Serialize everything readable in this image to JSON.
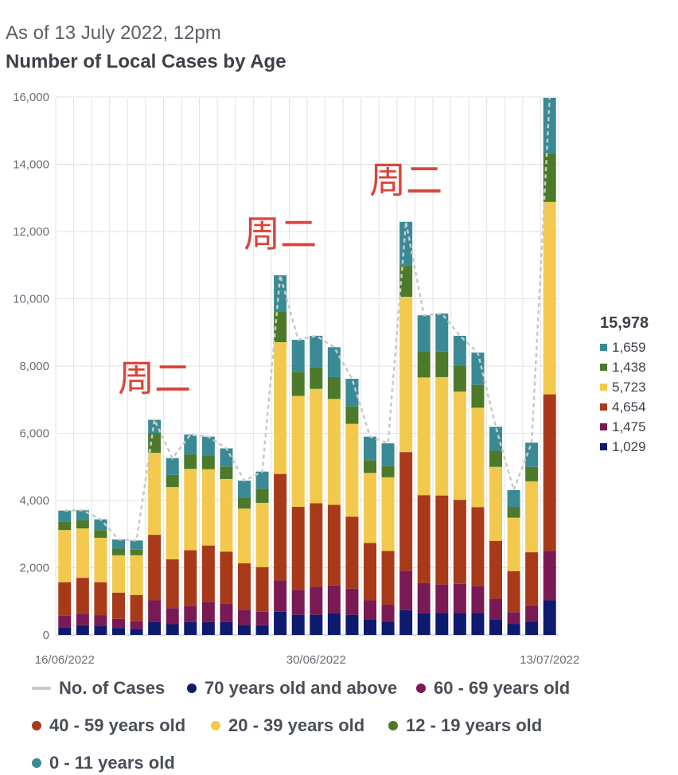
{
  "header": {
    "subtitle": "As of 13 July 2022, 12pm",
    "title": "Number of Local Cases by Age"
  },
  "chart_data": {
    "type": "bar",
    "stacked": true,
    "title": "Number of Local Cases by Age",
    "subtitle": "As of 13 July 2022, 12pm",
    "ylim": [
      0,
      16000
    ],
    "yticks": [
      "0",
      "2,000",
      "4,000",
      "6,000",
      "8,000",
      "10,000",
      "12,000",
      "14,000",
      "16,000"
    ],
    "grid": true,
    "legend_position": "bottom",
    "categories": [
      "16/06/2022",
      "17/06/2022",
      "18/06/2022",
      "19/06/2022",
      "20/06/2022",
      "21/06/2022",
      "22/06/2022",
      "23/06/2022",
      "24/06/2022",
      "25/06/2022",
      "26/06/2022",
      "27/06/2022",
      "28/06/2022",
      "29/06/2022",
      "30/06/2022",
      "01/07/2022",
      "02/07/2022",
      "03/07/2022",
      "04/07/2022",
      "05/07/2022",
      "06/07/2022",
      "07/07/2022",
      "08/07/2022",
      "09/07/2022",
      "10/07/2022",
      "11/07/2022",
      "12/07/2022",
      "13/07/2022"
    ],
    "x_tick_labels": [
      "16/06/2022",
      "30/06/2022",
      "13/07/2022"
    ],
    "series": [
      {
        "name": "70 years old and above",
        "color": "#0d1a6e",
        "values": [
          230,
          290,
          260,
          210,
          180,
          380,
          320,
          380,
          380,
          380,
          300,
          290,
          690,
          600,
          600,
          640,
          600,
          460,
          400,
          740,
          640,
          650,
          650,
          650,
          460,
          330,
          400,
          1029
        ]
      },
      {
        "name": "60 - 69 years old",
        "color": "#7a1a55",
        "values": [
          340,
          340,
          320,
          270,
          230,
          650,
          480,
          490,
          600,
          560,
          450,
          400,
          930,
          740,
          830,
          830,
          780,
          570,
          500,
          1170,
          900,
          850,
          870,
          810,
          620,
          350,
          480,
          1475
        ]
      },
      {
        "name": "40 - 59 years old",
        "color": "#a83a1a",
        "values": [
          1000,
          1070,
          990,
          780,
          780,
          1950,
          1450,
          1650,
          1680,
          1540,
          1380,
          1330,
          3170,
          2470,
          2490,
          2400,
          2140,
          1710,
          1600,
          3530,
          2620,
          2650,
          2500,
          2340,
          1720,
          1220,
          1580,
          4654
        ]
      },
      {
        "name": "20 - 39 years old",
        "color": "#f2c94c",
        "values": [
          1550,
          1470,
          1320,
          1110,
          1180,
          2440,
          2150,
          2420,
          2270,
          2160,
          1630,
          1910,
          3920,
          3300,
          3400,
          3150,
          2760,
          2080,
          2190,
          4620,
          3500,
          3520,
          3220,
          2960,
          2200,
          1590,
          2110,
          5723
        ]
      },
      {
        "name": "12 - 19 years old",
        "color": "#4c7a2a",
        "values": [
          250,
          240,
          230,
          200,
          170,
          580,
          360,
          430,
          410,
          370,
          330,
          420,
          920,
          720,
          650,
          650,
          520,
          380,
          330,
          920,
          780,
          760,
          760,
          680,
          480,
          320,
          430,
          1438
        ]
      },
      {
        "name": "0 - 11 years old",
        "color": "#3a8a96",
        "values": [
          330,
          300,
          320,
          270,
          270,
          400,
          500,
          590,
          560,
          540,
          500,
          510,
          1070,
          950,
          930,
          890,
          820,
          700,
          680,
          1310,
          1070,
          1130,
          900,
          960,
          710,
          500,
          720,
          1659
        ]
      }
    ],
    "totals_series": {
      "name": "No. of Cases",
      "color": "#c9c9c9",
      "values": [
        3700,
        3710,
        3440,
        2840,
        2810,
        6400,
        5260,
        5960,
        5900,
        5550,
        4590,
        4860,
        10700,
        8780,
        8900,
        8560,
        7620,
        5900,
        5700,
        12290,
        9510,
        9560,
        8900,
        8400,
        6190,
        4310,
        5720,
        15978
      ]
    },
    "annotations": [
      {
        "text": "周二",
        "date": "21/06/2022"
      },
      {
        "text": "周二",
        "date": "28/06/2022"
      },
      {
        "text": "周二",
        "date": "05/07/2022"
      }
    ]
  },
  "tooltip": {
    "total": "15,978",
    "rows": [
      {
        "label": "1,659",
        "color": "#3a8a96"
      },
      {
        "label": "1,438",
        "color": "#4c7a2a"
      },
      {
        "label": "5,723",
        "color": "#f2c94c"
      },
      {
        "label": "4,654",
        "color": "#a83a1a"
      },
      {
        "label": "1,475",
        "color": "#7a1a55"
      },
      {
        "label": "1,029",
        "color": "#0d1a6e"
      }
    ]
  },
  "legend": [
    {
      "label": "No. of Cases",
      "marker": "dash",
      "color": "#c9c9c9"
    },
    {
      "label": "70 years old and above",
      "marker": "dot",
      "color": "#0d1a6e"
    },
    {
      "label": "60 - 69 years old",
      "marker": "dot",
      "color": "#7a1a55"
    },
    {
      "label": "40 - 59 years old",
      "marker": "dot",
      "color": "#a83a1a"
    },
    {
      "label": "20 - 39 years old",
      "marker": "dot",
      "color": "#f2c94c"
    },
    {
      "label": "12 - 19 years old",
      "marker": "dot",
      "color": "#4c7a2a"
    },
    {
      "label": "0 - 11 years old",
      "marker": "dot",
      "color": "#3a8a96"
    }
  ]
}
